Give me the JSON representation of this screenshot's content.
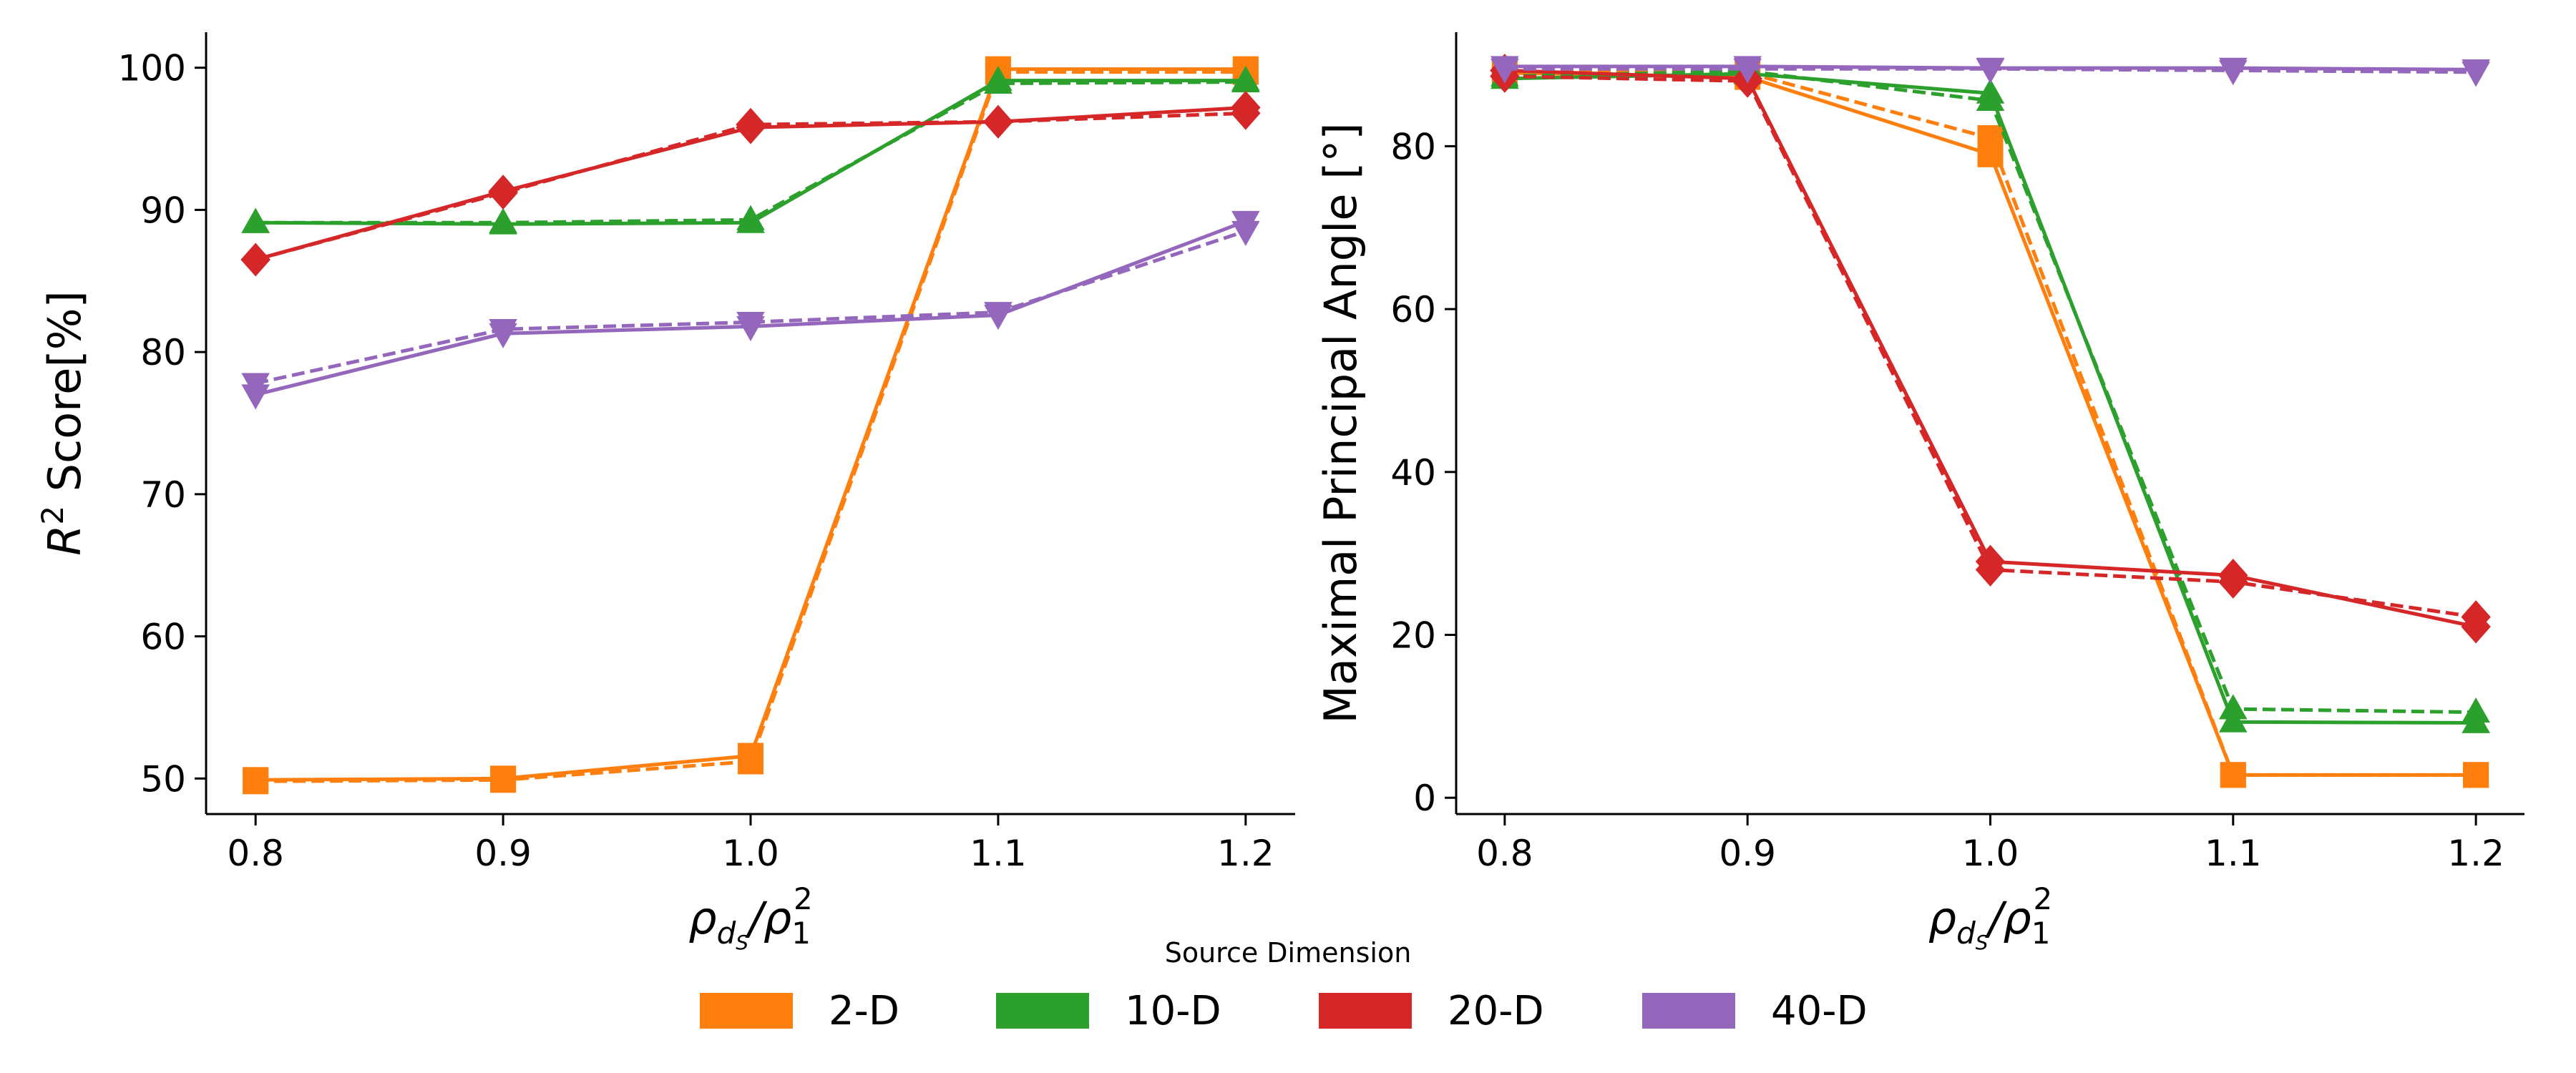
{
  "chart_data": [
    {
      "type": "line",
      "id": "left",
      "ylabel_main": "R",
      "ylabel_sup": "2",
      "ylabel_rest": " Score[%]",
      "xlabel_rho": "ρ",
      "xlabel_sub1": "d",
      "xlabel_sub2": "S",
      "xlabel_slash": "/ρ",
      "xlabel_sub3": "1",
      "xlabel_sup3": "2",
      "xlim": [
        0.78,
        1.22
      ],
      "ylim": [
        47.5,
        102.5
      ],
      "x": [
        0.8,
        0.9,
        1.0,
        1.1,
        1.2
      ],
      "x_tick_labels": [
        "0.8",
        "0.9",
        "1.0",
        "1.1",
        "1.2"
      ],
      "y_ticks": [
        50,
        60,
        70,
        80,
        90,
        100
      ],
      "y_tick_labels": [
        "50",
        "60",
        "70",
        "80",
        "90",
        "100"
      ],
      "grid": false,
      "series": [
        {
          "key": "2d",
          "solid": [
            49.9,
            50.0,
            51.6,
            99.9,
            99.9
          ],
          "dashed": [
            49.8,
            49.9,
            51.2,
            99.7,
            99.7
          ]
        },
        {
          "key": "10d",
          "solid": [
            89.1,
            89.0,
            89.1,
            99.1,
            99.1
          ],
          "dashed": [
            89.1,
            89.1,
            89.3,
            98.9,
            99.0
          ]
        },
        {
          "key": "20d",
          "solid": [
            86.5,
            91.3,
            95.8,
            96.2,
            97.2
          ],
          "dashed": [
            86.5,
            91.2,
            96.0,
            96.2,
            96.8
          ]
        },
        {
          "key": "40d",
          "solid": [
            77.0,
            81.3,
            81.8,
            82.6,
            89.2
          ],
          "dashed": [
            77.8,
            81.6,
            82.1,
            82.8,
            88.5
          ]
        }
      ]
    },
    {
      "type": "line",
      "id": "right",
      "ylabel": "Maximal Principal Angle [°]",
      "xlabel_rho": "ρ",
      "xlabel_sub1": "d",
      "xlabel_sub2": "S",
      "xlabel_slash": "/ρ",
      "xlabel_sub3": "1",
      "xlabel_sup3": "2",
      "xlim": [
        0.78,
        1.22
      ],
      "ylim": [
        -2,
        94
      ],
      "x": [
        0.8,
        0.9,
        1.0,
        1.1,
        1.2
      ],
      "x_tick_labels": [
        "0.8",
        "0.9",
        "1.0",
        "1.1",
        "1.2"
      ],
      "y_ticks": [
        0,
        20,
        40,
        60,
        80
      ],
      "y_tick_labels": [
        "0",
        "20",
        "40",
        "60",
        "80"
      ],
      "grid": false,
      "series": [
        {
          "key": "2d",
          "solid": [
            89.0,
            88.5,
            79.0,
            2.8,
            2.8
          ],
          "dashed": [
            89.3,
            89.0,
            81.0,
            2.8,
            2.8
          ]
        },
        {
          "key": "10d",
          "solid": [
            88.3,
            88.9,
            86.5,
            9.3,
            9.2
          ],
          "dashed": [
            88.6,
            89.2,
            85.6,
            10.9,
            10.5
          ]
        },
        {
          "key": "20d",
          "solid": [
            89.3,
            88.3,
            29.0,
            27.3,
            21.0
          ],
          "dashed": [
            88.6,
            88.0,
            28.0,
            26.5,
            22.2
          ]
        },
        {
          "key": "40d",
          "solid": [
            89.8,
            89.8,
            89.6,
            89.6,
            89.4
          ],
          "dashed": [
            89.5,
            89.5,
            89.5,
            89.3,
            89.1
          ]
        }
      ]
    }
  ],
  "legend": {
    "title": "Source Dimension",
    "placement": "bottom-center",
    "items": [
      {
        "key": "2d",
        "label": "2-D",
        "color": "#ff7f0e",
        "marker": "square"
      },
      {
        "key": "10d",
        "label": "10-D",
        "color": "#2ca02c",
        "marker": "triangle-up"
      },
      {
        "key": "20d",
        "label": "20-D",
        "color": "#d62728",
        "marker": "diamond"
      },
      {
        "key": "40d",
        "label": "40-D",
        "color": "#9467bd",
        "marker": "triangle-down"
      }
    ]
  }
}
